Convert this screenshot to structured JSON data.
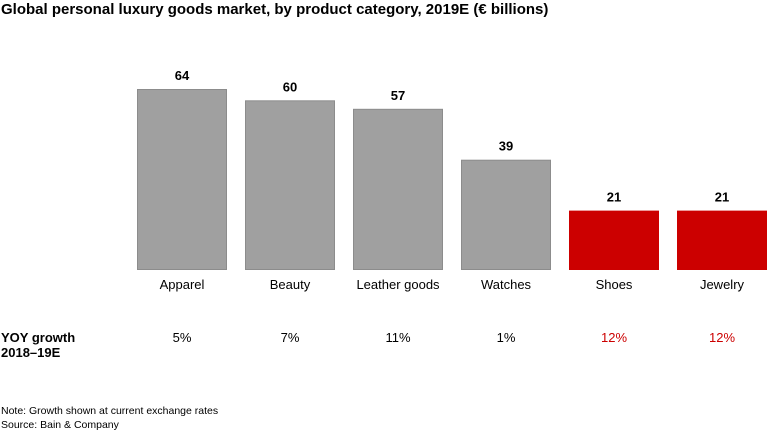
{
  "chart_data": {
    "type": "bar",
    "title": "Global personal luxury goods market, by product category, 2019E (€ billions)",
    "categories": [
      "Apparel",
      "Beauty",
      "Leather goods",
      "Watches",
      "Shoes",
      "Jewelry"
    ],
    "values": [
      64,
      60,
      57,
      39,
      21,
      21
    ],
    "highlight": [
      false,
      false,
      false,
      false,
      true,
      true
    ],
    "growth_label": "YOY growth",
    "growth_period": "2018–19E",
    "growth": [
      "5%",
      "7%",
      "11%",
      "1%",
      "12%",
      "12%"
    ],
    "colors": {
      "bar": "#a0a0a0",
      "bar_border": "#8c8c8c",
      "highlight": "#cc0000",
      "text": "#000000"
    },
    "ylim": [
      0,
      64
    ],
    "grid": false,
    "note": "Note: Growth shown at current exchange rates",
    "source": "Source: Bain & Company"
  }
}
